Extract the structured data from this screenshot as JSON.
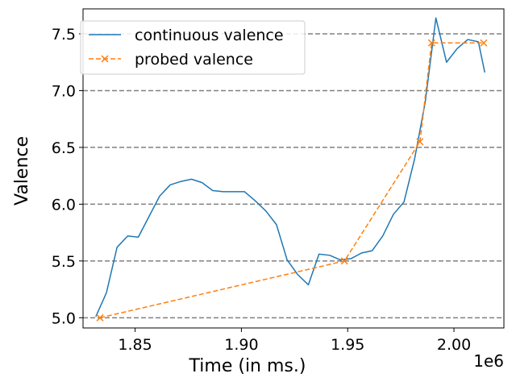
{
  "chart_data": {
    "type": "line",
    "title": "",
    "xlabel": "Time (in ms.)",
    "ylabel": "Valence",
    "x_offset_label": "1e6",
    "xlim": [
      1.8255,
      2.0235
    ],
    "ylim": [
      4.91,
      7.72
    ],
    "x_ticks": [
      1.85,
      1.9,
      1.95,
      2.0
    ],
    "x_tick_labels": [
      "1.85",
      "1.90",
      "1.95",
      "2.00"
    ],
    "y_ticks": [
      5.0,
      5.5,
      6.0,
      6.5,
      7.0,
      7.5
    ],
    "y_tick_labels": [
      "5.0",
      "5.5",
      "6.0",
      "6.5",
      "7.0",
      "7.5"
    ],
    "grid": "horizontal dashed at y ticks",
    "legend_position": "upper-left",
    "series": [
      {
        "name": "continuous valence",
        "color": "#1f77b4",
        "line_style": "solid",
        "marker": "none",
        "x": [
          1.8315,
          1.8365,
          1.8415,
          1.8465,
          1.8515,
          1.8565,
          1.8615,
          1.8665,
          1.8715,
          1.8765,
          1.8815,
          1.8865,
          1.8915,
          1.8965,
          1.9015,
          1.9065,
          1.9115,
          1.9165,
          1.9215,
          1.9265,
          1.9315,
          1.9365,
          1.9415,
          1.9465,
          1.9515,
          1.9565,
          1.9615,
          1.9665,
          1.9715,
          1.9765,
          1.9815,
          1.9865,
          1.9915,
          1.9965,
          2.0015,
          2.0065,
          2.0115,
          2.0145
        ],
        "y": [
          5.01,
          5.22,
          5.62,
          5.72,
          5.71,
          5.89,
          6.07,
          6.17,
          6.2,
          6.22,
          6.19,
          6.12,
          6.11,
          6.11,
          6.11,
          6.03,
          5.94,
          5.82,
          5.51,
          5.38,
          5.29,
          5.56,
          5.55,
          5.51,
          5.52,
          5.57,
          5.59,
          5.72,
          5.91,
          6.02,
          6.4,
          6.9,
          7.64,
          7.25,
          7.37,
          7.45,
          7.43,
          7.16
        ]
      },
      {
        "name": "probed valence",
        "color": "#ff7f0e",
        "line_style": "dashed",
        "marker": "x",
        "x": [
          1.8335,
          1.9485,
          1.984,
          1.9895,
          2.014
        ],
        "y": [
          5.0,
          5.5,
          6.55,
          7.42,
          7.42
        ]
      }
    ]
  }
}
